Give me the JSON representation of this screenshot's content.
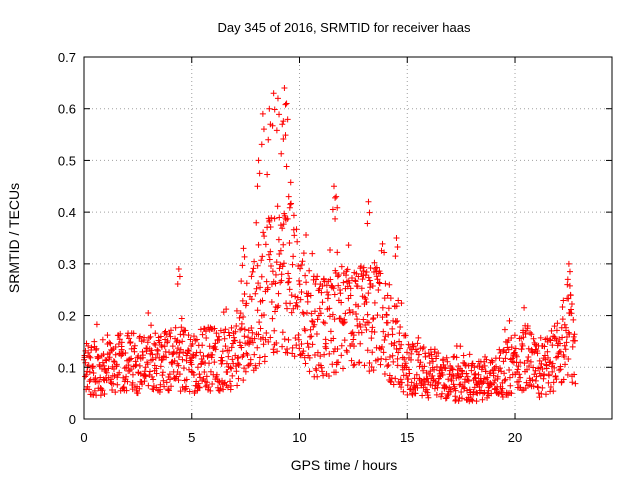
{
  "chart_data": {
    "type": "scatter",
    "title": "Day 345 of 2016, SRMTID for receiver haas",
    "xlabel": "GPS time / hours",
    "ylabel": "SRMTID / TECUs",
    "xlim": [
      0,
      24.5
    ],
    "ylim": [
      0,
      0.7
    ],
    "xticks": [
      0,
      5,
      10,
      15,
      20
    ],
    "yticks": [
      0,
      0.1,
      0.2,
      0.3,
      0.4,
      0.5,
      0.6,
      0.7
    ],
    "x_tick_labels": [
      "0",
      "5",
      "10",
      "15",
      "20"
    ],
    "y_tick_labels": [
      "0",
      "0.1",
      "0.2",
      "0.3",
      "0.4",
      "0.5",
      "0.6",
      "0.7"
    ],
    "grid": true,
    "marker": "+",
    "color": "#ff0000",
    "x_range_of_data": [
      0,
      22.8
    ],
    "series": [
      {
        "name": "SRMTID",
        "trend_x": [
          0,
          1,
          2,
          3,
          4,
          5,
          6,
          6.8,
          7.5,
          8.3,
          9.0,
          9.6,
          10.5,
          11.5,
          12.5,
          13.5,
          14.2,
          15,
          16,
          17,
          18,
          19,
          20,
          20.5,
          21.2,
          22,
          22.5,
          22.8
        ],
        "trend_y": [
          0.1,
          0.1,
          0.11,
          0.11,
          0.12,
          0.11,
          0.12,
          0.11,
          0.17,
          0.24,
          0.28,
          0.27,
          0.18,
          0.18,
          0.19,
          0.2,
          0.16,
          0.1,
          0.09,
          0.08,
          0.07,
          0.08,
          0.11,
          0.12,
          0.09,
          0.13,
          0.18,
          0.13
        ],
        "peaks": [
          {
            "x": 4.4,
            "y": 0.29
          },
          {
            "x": 7.4,
            "y": 0.33
          },
          {
            "x": 8.1,
            "y": 0.5
          },
          {
            "x": 8.3,
            "y": 0.59
          },
          {
            "x": 8.6,
            "y": 0.6
          },
          {
            "x": 8.8,
            "y": 0.63
          },
          {
            "x": 9.0,
            "y": 0.62
          },
          {
            "x": 9.2,
            "y": 0.57
          },
          {
            "x": 9.3,
            "y": 0.64
          },
          {
            "x": 9.4,
            "y": 0.61
          },
          {
            "x": 9.5,
            "y": 0.43
          },
          {
            "x": 11.6,
            "y": 0.45
          },
          {
            "x": 11.7,
            "y": 0.43
          },
          {
            "x": 13.2,
            "y": 0.42
          },
          {
            "x": 14.5,
            "y": 0.35
          },
          {
            "x": 22.5,
            "y": 0.3
          }
        ]
      }
    ]
  }
}
